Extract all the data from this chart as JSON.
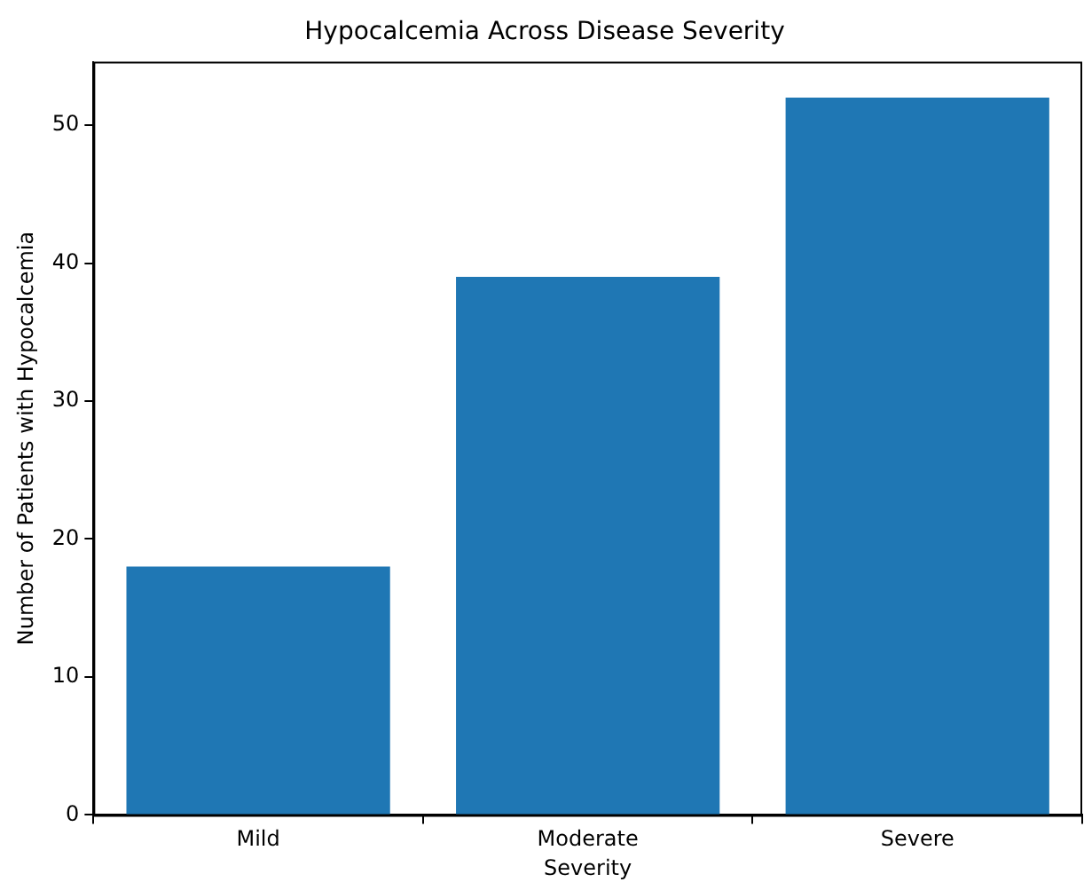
{
  "chart_data": {
    "type": "bar",
    "title": "Hypocalcemia Across Disease Severity",
    "xlabel": "Severity",
    "ylabel": "Number of Patients with Hypocalcemia",
    "categories": [
      "Mild",
      "Moderate",
      "Severe"
    ],
    "values": [
      18,
      39,
      52
    ],
    "color": "#1f77b4",
    "ylim": [
      0,
      54.6
    ],
    "yticks": [
      0,
      10,
      20,
      30,
      40,
      50
    ],
    "grid": false,
    "legend": false
  }
}
